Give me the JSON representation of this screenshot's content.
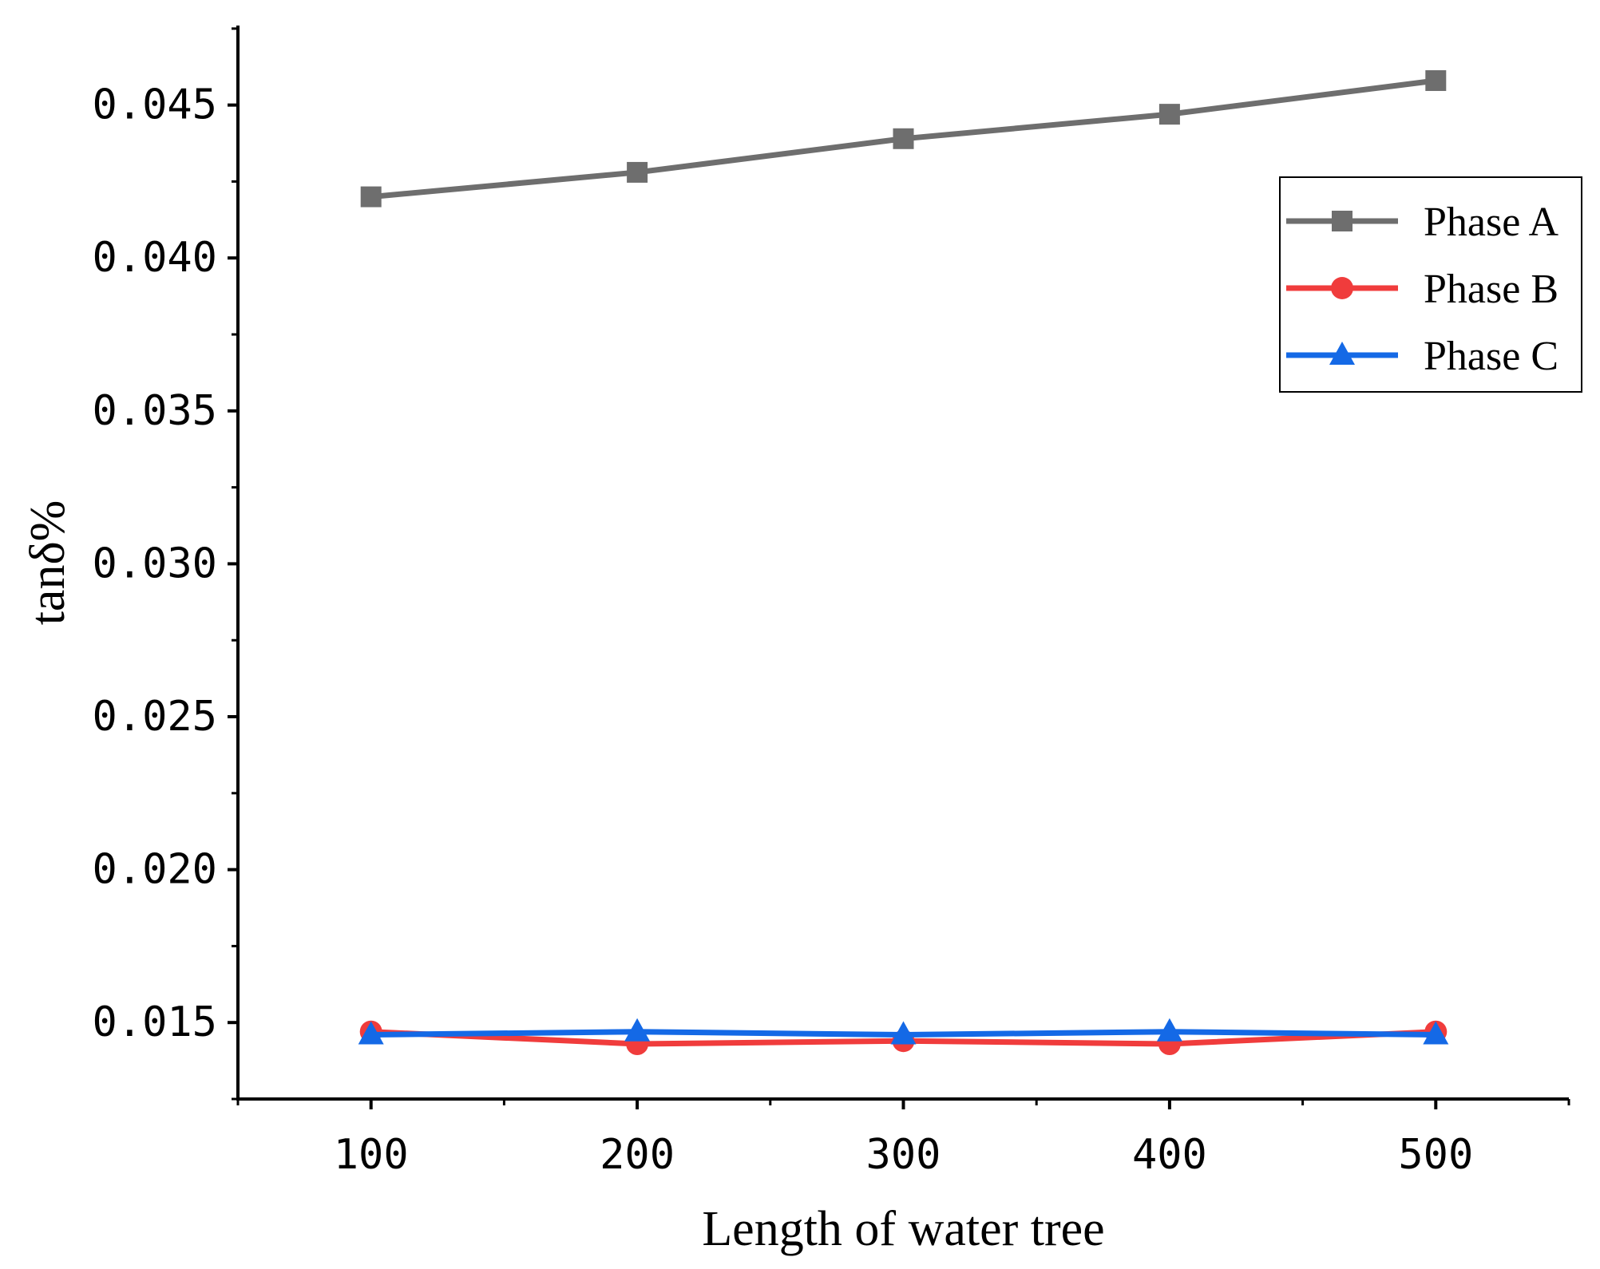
{
  "chart_data": {
    "type": "line",
    "title": "",
    "xlabel": "Length of water tree",
    "ylabel": "tanδ%",
    "x": [
      100,
      200,
      300,
      400,
      500
    ],
    "xlim": [
      50,
      550
    ],
    "ylim": [
      0.0125,
      0.0476
    ],
    "xticks": [
      "100",
      "200",
      "300",
      "400",
      "500"
    ],
    "yticks": [
      "0.015",
      "0.020",
      "0.025",
      "0.030",
      "0.035",
      "0.040",
      "0.045"
    ],
    "legend_position": "top-right",
    "series": [
      {
        "name": "Phase A",
        "color": "#6e6e6e",
        "marker": "square",
        "values": [
          0.042,
          0.0428,
          0.0439,
          0.0447,
          0.0458
        ]
      },
      {
        "name": "Phase B",
        "color": "#f03c3c",
        "marker": "circle",
        "values": [
          0.0147,
          0.0143,
          0.0144,
          0.0143,
          0.0147
        ]
      },
      {
        "name": "Phase C",
        "color": "#1469e6",
        "marker": "triangle",
        "values": [
          0.0146,
          0.0147,
          0.0146,
          0.0147,
          0.0146
        ]
      }
    ]
  }
}
